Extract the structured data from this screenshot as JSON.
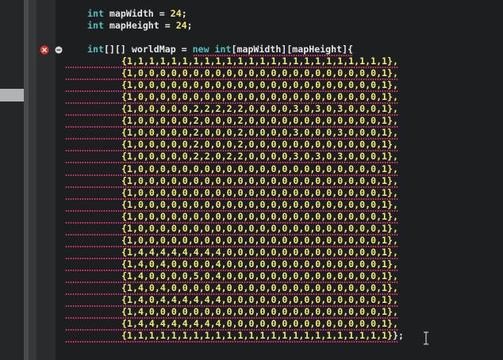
{
  "editor": {
    "lines": [
      [
        {
          "text": "int",
          "color": "#4fc1c3"
        },
        {
          "text": " mapWidth = ",
          "color": "#e8e8e8"
        },
        {
          "text": "24",
          "color": "#f2ec6a"
        },
        {
          "text": ";",
          "color": "#e8e8e8"
        }
      ],
      [
        {
          "text": "int",
          "color": "#4fc1c3"
        },
        {
          "text": " mapHeight = ",
          "color": "#e8e8e8"
        },
        {
          "text": "24",
          "color": "#f2ec6a"
        },
        {
          "text": ";",
          "color": "#e8e8e8"
        }
      ],
      [],
      [
        {
          "text": "int",
          "color": "#4fc1c3"
        },
        {
          "text": "[][] worldMap = ",
          "color": "#e8e8e8"
        },
        {
          "text": "new int",
          "color": "#4fc1c3"
        },
        {
          "text": "[mapWidth][mapHeight]{",
          "color": "#e8e8e8"
        }
      ],
      [
        {
          "text": "{1,1,1,1,1,1,1,1,1,1,1,1,1,1,1,1,1,1,1,1,1,1,1,1},",
          "color": "#f2ec6a"
        }
      ],
      [
        {
          "text": "{1,0,0,0,0,0,0,0,0,0,0,0,0,0,0,0,0,0,0,0,0,0,0,1},",
          "color": "#f2ec6a"
        }
      ],
      [
        {
          "text": "{1,0,0,0,0,0,0,0,0,0,0,0,0,0,0,0,0,0,0,0,0,0,0,1},",
          "color": "#f2ec6a"
        }
      ],
      [
        {
          "text": "{1,0,0,0,0,0,0,0,0,0,0,0,0,0,0,0,0,0,0,0,0,0,0,1},",
          "color": "#f2ec6a"
        }
      ],
      [
        {
          "text": "{1,0,0,0,0,0,2,2,2,2,2,0,0,0,0,3,0,3,0,3,0,0,0,1},",
          "color": "#f2ec6a"
        }
      ],
      [
        {
          "text": "{1,0,0,0,0,0,2,0,0,0,2,0,0,0,0,0,0,0,0,0,0,0,0,1},",
          "color": "#f2ec6a"
        }
      ],
      [
        {
          "text": "{1,0,0,0,0,0,2,0,0,0,2,0,0,0,0,3,0,0,0,3,0,0,0,1},",
          "color": "#f2ec6a"
        }
      ],
      [
        {
          "text": "{1,0,0,0,0,0,2,0,0,0,2,0,0,0,0,0,0,0,0,0,0,0,0,1},",
          "color": "#f2ec6a"
        }
      ],
      [
        {
          "text": "{1,0,0,0,0,0,2,2,0,2,2,0,0,0,0,3,0,3,0,3,0,0,0,1},",
          "color": "#f2ec6a"
        }
      ],
      [
        {
          "text": "{1,0,0,0,0,0,0,0,0,0,0,0,0,0,0,0,0,0,0,0,0,0,0,1},",
          "color": "#f2ec6a"
        }
      ],
      [
        {
          "text": "{1,0,0,0,0,0,0,0,0,0,0,0,0,0,0,0,0,0,0,0,0,0,0,1},",
          "color": "#f2ec6a"
        }
      ],
      [
        {
          "text": "{1,0,0,0,0,0,0,0,0,0,0,0,0,0,0,0,0,0,0,0,0,0,0,1},",
          "color": "#f2ec6a"
        }
      ],
      [
        {
          "text": "{1,0,0,0,0,0,0,0,0,0,0,0,0,0,0,0,0,0,0,0,0,0,0,1},",
          "color": "#f2ec6a"
        }
      ],
      [
        {
          "text": "{1,0,0,0,0,0,0,0,0,0,0,0,0,0,0,0,0,0,0,0,0,0,0,1},",
          "color": "#f2ec6a"
        }
      ],
      [
        {
          "text": "{1,0,0,0,0,0,0,0,0,0,0,0,0,0,0,0,0,0,0,0,0,0,0,1},",
          "color": "#f2ec6a"
        }
      ],
      [
        {
          "text": "{1,0,0,0,0,0,0,0,0,0,0,0,0,0,0,0,0,0,0,0,0,0,0,1},",
          "color": "#f2ec6a"
        }
      ],
      [
        {
          "text": "{1,4,4,4,4,4,4,4,4,0,0,0,0,0,0,0,0,0,0,0,0,0,0,1},",
          "color": "#f2ec6a"
        }
      ],
      [
        {
          "text": "{1,4,0,4,0,0,0,0,4,0,0,0,0,0,0,0,0,0,0,0,0,0,0,1},",
          "color": "#f2ec6a"
        }
      ],
      [
        {
          "text": "{1,4,0,0,0,0,5,0,4,0,0,0,0,0,0,0,0,0,0,0,0,0,0,1},",
          "color": "#f2ec6a"
        }
      ],
      [
        {
          "text": "{1,4,0,4,0,0,0,0,4,0,0,0,0,0,0,0,0,0,0,0,0,0,0,1},",
          "color": "#f2ec6a"
        }
      ],
      [
        {
          "text": "{1,4,0,4,4,4,4,4,4,0,0,0,0,0,0,0,0,0,0,0,0,0,0,1},",
          "color": "#f2ec6a"
        }
      ],
      [
        {
          "text": "{1,4,0,0,0,0,0,0,0,0,0,0,0,0,0,0,0,0,0,0,0,0,0,1},",
          "color": "#f2ec6a"
        }
      ],
      [
        {
          "text": "{1,4,4,4,4,4,4,4,4,0,0,0,0,0,0,0,0,0,0,0,0,0,0,1},",
          "color": "#f2ec6a"
        }
      ],
      [
        {
          "text": "{1,1,1,1,1,1,1,1,1,1,1,1,1,1,1,1,1,1,1,1,1,1,1,1}",
          "color": "#f2ec6a"
        },
        {
          "text": "};",
          "color": "#e8e8e8"
        }
      ]
    ]
  }
}
